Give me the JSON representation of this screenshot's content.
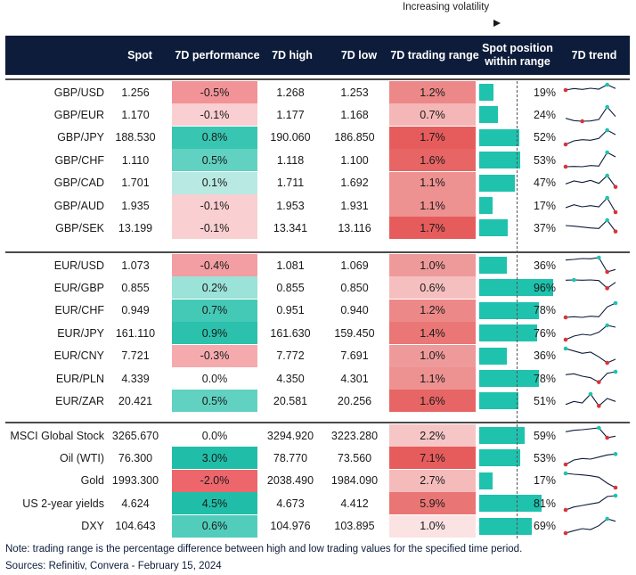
{
  "legend": {
    "label": "Increasing volatility"
  },
  "headers": {
    "spot": "Spot",
    "perf": "7D performance",
    "high": "7D high",
    "low": "7D low",
    "range": "7D trading range",
    "pos": "Spot position within range",
    "trend": "7D trend"
  },
  "colors": {
    "header_bg": "#0d1c3a",
    "bar": "#1fc2ad",
    "spark": "#0d1c3a",
    "dot_high": "#1fc2ad",
    "dot_low": "#d9343a"
  },
  "groups": [
    [
      {
        "pair": "GBP/USD",
        "spot": "1.256",
        "perf": "-0.5%",
        "perf_v": -0.5,
        "high": "1.268",
        "low": "1.253",
        "range": "1.2%",
        "range_v": 1.2,
        "pos": "19%",
        "pos_v": 19,
        "trend": [
          5,
          5.5,
          5.2,
          5.6,
          5.3,
          6.8,
          5.5
        ]
      },
      {
        "pair": "GBP/EUR",
        "spot": "1.170",
        "perf": "-0.1%",
        "perf_v": -0.1,
        "high": "1.177",
        "low": "1.168",
        "range": "0.7%",
        "range_v": 0.7,
        "pos": "24%",
        "pos_v": 24,
        "trend": [
          3,
          2.2,
          2.0,
          2.1,
          2.6,
          6.8,
          3.6
        ]
      },
      {
        "pair": "GBP/JPY",
        "spot": "188.530",
        "perf": "0.8%",
        "perf_v": 0.8,
        "high": "190.060",
        "low": "186.850",
        "range": "1.7%",
        "range_v": 1.7,
        "pos": "52%",
        "pos_v": 52,
        "trend": [
          2.0,
          3.2,
          3.6,
          3.4,
          4.0,
          6.8,
          5.3
        ]
      },
      {
        "pair": "GBP/CHF",
        "spot": "1.110",
        "perf": "0.5%",
        "perf_v": 0.5,
        "high": "1.118",
        "low": "1.100",
        "range": "1.6%",
        "range_v": 1.6,
        "pos": "53%",
        "pos_v": 53,
        "trend": [
          2.0,
          2.1,
          2.0,
          2.4,
          2.2,
          6.8,
          5.3
        ]
      },
      {
        "pair": "GBP/CAD",
        "spot": "1.701",
        "perf": "0.1%",
        "perf_v": 0.1,
        "high": "1.711",
        "low": "1.692",
        "range": "1.1%",
        "range_v": 1.1,
        "pos": "47%",
        "pos_v": 47,
        "trend": [
          4,
          5,
          4.5,
          5.2,
          4.2,
          6.8,
          3.0
        ]
      },
      {
        "pair": "GBP/AUD",
        "spot": "1.935",
        "perf": "-0.1%",
        "perf_v": -0.1,
        "high": "1.953",
        "low": "1.931",
        "range": "1.1%",
        "range_v": 1.1,
        "pos": "17%",
        "pos_v": 17,
        "trend": [
          3.5,
          4.5,
          3.8,
          4.2,
          3.8,
          6.8,
          2.0
        ]
      },
      {
        "pair": "GBP/SEK",
        "spot": "13.199",
        "perf": "-0.1%",
        "perf_v": -0.1,
        "high": "13.341",
        "low": "13.116",
        "range": "1.7%",
        "range_v": 1.7,
        "pos": "37%",
        "pos_v": 37,
        "trend": [
          5,
          4.8,
          4.5,
          4.2,
          4.0,
          6.8,
          3.0
        ]
      }
    ],
    [
      {
        "pair": "EUR/USD",
        "spot": "1.073",
        "perf": "-0.4%",
        "perf_v": -0.4,
        "high": "1.081",
        "low": "1.069",
        "range": "1.0%",
        "range_v": 1.0,
        "pos": "36%",
        "pos_v": 36,
        "trend": [
          6,
          6.2,
          6.5,
          6.4,
          6.8,
          2.0,
          2.8
        ]
      },
      {
        "pair": "EUR/GBP",
        "spot": "0.855",
        "perf": "0.2%",
        "perf_v": 0.2,
        "high": "0.855",
        "low": "0.850",
        "range": "0.6%",
        "range_v": 0.6,
        "pos": "96%",
        "pos_v": 96,
        "trend": [
          6.7,
          6.8,
          6.7,
          6.8,
          6.6,
          4.0,
          6.0
        ]
      },
      {
        "pair": "EUR/CHF",
        "spot": "0.949",
        "perf": "0.7%",
        "perf_v": 0.7,
        "high": "0.951",
        "low": "0.940",
        "range": "1.2%",
        "range_v": 1.2,
        "pos": "78%",
        "pos_v": 78,
        "trend": [
          2.0,
          2.2,
          2.0,
          2.4,
          2.2,
          5.5,
          6.8
        ]
      },
      {
        "pair": "EUR/JPY",
        "spot": "161.110",
        "perf": "0.9%",
        "perf_v": 0.9,
        "high": "161.630",
        "low": "159.450",
        "range": "1.4%",
        "range_v": 1.4,
        "pos": "76%",
        "pos_v": 76,
        "trend": [
          2.0,
          3.2,
          3.8,
          3.5,
          4.5,
          6.8,
          6.2
        ]
      },
      {
        "pair": "EUR/CNY",
        "spot": "7.721",
        "perf": "-0.3%",
        "perf_v": -0.3,
        "high": "7.772",
        "low": "7.691",
        "range": "1.0%",
        "range_v": 1.0,
        "pos": "36%",
        "pos_v": 36,
        "trend": [
          6.8,
          6.0,
          5.2,
          5.6,
          4.0,
          2.0,
          3.2
        ]
      },
      {
        "pair": "EUR/PLN",
        "spot": "4.339",
        "perf": "0.0%",
        "perf_v": 0.0,
        "high": "4.350",
        "low": "4.301",
        "range": "1.1%",
        "range_v": 1.1,
        "pos": "78%",
        "pos_v": 78,
        "trend": [
          5.5,
          5.8,
          5.0,
          4.5,
          3.0,
          6.0,
          6.5
        ]
      },
      {
        "pair": "EUR/ZAR",
        "spot": "20.421",
        "perf": "0.5%",
        "perf_v": 0.5,
        "high": "20.581",
        "low": "20.256",
        "range": "1.6%",
        "range_v": 1.6,
        "pos": "51%",
        "pos_v": 51,
        "trend": [
          3.0,
          4.0,
          3.5,
          6.5,
          2.5,
          5.0,
          4.0
        ]
      }
    ],
    [
      {
        "pair": "MSCI Global Stock",
        "spot": "3265.670",
        "perf": "0.0%",
        "perf_v": 0.0,
        "high": "3294.920",
        "low": "3223.280",
        "range": "2.2%",
        "range_v": 2.2,
        "pos": "59%",
        "pos_v": 59,
        "trend": [
          5.5,
          6.0,
          6.2,
          6.5,
          6.8,
          3.5,
          4.0
        ]
      },
      {
        "pair": "Oil (WTI)",
        "spot": "76.300",
        "perf": "3.0%",
        "perf_v": 3.0,
        "high": "78.770",
        "low": "73.560",
        "range": "7.1%",
        "range_v": 7.1,
        "pos": "53%",
        "pos_v": 53,
        "trend": [
          2.0,
          3.5,
          4.0,
          3.8,
          4.5,
          5.2,
          5.5
        ]
      },
      {
        "pair": "Gold",
        "spot": "1993.300",
        "perf": "-2.0%",
        "perf_v": -2.0,
        "high": "2038.490",
        "low": "1984.090",
        "range": "2.7%",
        "range_v": 2.7,
        "pos": "17%",
        "pos_v": 17,
        "trend": [
          6.8,
          6.5,
          6.3,
          6.0,
          5.5,
          3.5,
          2.0
        ]
      },
      {
        "pair": "US 2-year yields",
        "spot": "4.624",
        "perf": "4.5%",
        "perf_v": 4.5,
        "high": "4.673",
        "low": "4.412",
        "range": "5.9%",
        "range_v": 5.9,
        "pos": "81%",
        "pos_v": 81,
        "trend": [
          2.0,
          3.0,
          3.5,
          4.0,
          4.5,
          6.5,
          6.8
        ]
      },
      {
        "pair": "DXY",
        "spot": "104.643",
        "perf": "0.6%",
        "perf_v": 0.6,
        "high": "104.976",
        "low": "103.895",
        "range": "1.0%",
        "range_v": 1.0,
        "pos": "69%",
        "pos_v": 69,
        "trend": [
          2.0,
          2.8,
          3.5,
          3.2,
          4.5,
          6.8,
          6.0
        ]
      }
    ]
  ],
  "footer": {
    "note": "Note: trading range is the percentage difference between high and low trading values for the specified time period.",
    "sources": "Sources: Refinitiv, Convera - February 15, 2024"
  }
}
